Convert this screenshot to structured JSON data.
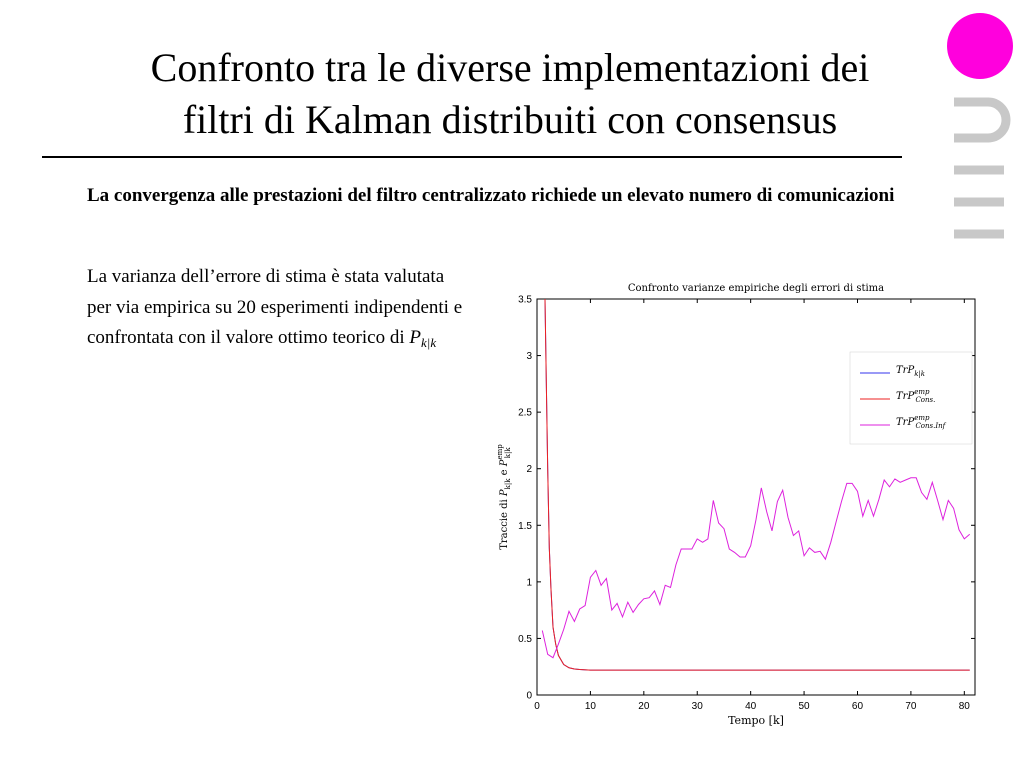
{
  "slide": {
    "title_line1": "Confronto tra le diverse implementazioni dei",
    "title_line2": "filtri di Kalman distribuiti con consensus",
    "subtitle": "La convergenza alle prestazioni del filtro centralizzato richiede un elevato numero di comunicazioni",
    "body_text": "La varianza dell’errore di stima è stata valutata per via empirica su 20 esperimenti indipendenti e confrontata con il valore ottimo teorico di",
    "body_symbol": "P",
    "body_symbol_sub": "k|k"
  },
  "colors": {
    "logo_dot": "#ff00dd",
    "logo_bars": "#c8c8c8",
    "series_tr_p": "#3333ee",
    "series_cons": "#ee2222",
    "series_cons_inf": "#dd22dd"
  },
  "chart_data": {
    "type": "line",
    "title": "Confronto varianze empiriche degli errori di stima",
    "xlabel": "Tempo [k]",
    "ylabel": "Traccie di P_{k|k} e P^{emp}_{k|k}",
    "xlim": [
      0,
      82
    ],
    "ylim": [
      0,
      3.5
    ],
    "xticks": [
      "0",
      "10",
      "20",
      "30",
      "40",
      "50",
      "60",
      "70",
      "80"
    ],
    "yticks": [
      "0",
      "0.5",
      "1",
      "1.5",
      "2",
      "2.5",
      "3",
      "3.5"
    ],
    "grid": false,
    "legend": "top-right",
    "series": [
      {
        "name": "TrP_{k|k}",
        "x": [
          1.5,
          1.8,
          2,
          2.3,
          2.6,
          3,
          3.5,
          4,
          5,
          6,
          7,
          8,
          10,
          81
        ],
        "y": [
          3.5,
          2.6,
          2.0,
          1.3,
          0.95,
          0.6,
          0.45,
          0.35,
          0.27,
          0.24,
          0.23,
          0.225,
          0.22,
          0.22
        ]
      },
      {
        "name": "TrP^{emp}_{Cons.}",
        "x": [
          1.5,
          1.8,
          2,
          2.3,
          2.6,
          3,
          3.5,
          4,
          5,
          6,
          7,
          8,
          10,
          81
        ],
        "y": [
          3.5,
          2.6,
          2.0,
          1.3,
          0.95,
          0.6,
          0.45,
          0.35,
          0.27,
          0.24,
          0.23,
          0.225,
          0.22,
          0.22
        ]
      },
      {
        "name": "TrP^{emp}_{Cons.Inf}",
        "x": [
          1,
          2,
          3,
          4,
          5,
          6,
          7,
          8,
          9,
          10,
          11,
          12,
          13,
          14,
          15,
          16,
          17,
          18,
          19,
          20,
          21,
          22,
          23,
          24,
          25,
          26,
          27,
          28,
          29,
          30,
          31,
          32,
          33,
          34,
          35,
          36,
          37,
          38,
          39,
          40,
          41,
          42,
          43,
          44,
          45,
          46,
          47,
          48,
          49,
          50,
          51,
          52,
          53,
          54,
          55,
          56,
          57,
          58,
          59,
          60,
          61,
          62,
          63,
          64,
          65,
          66,
          67,
          68,
          69,
          70,
          71,
          72,
          73,
          74,
          75,
          76,
          77,
          78,
          79,
          80,
          81
        ],
        "y": [
          0.57,
          0.36,
          0.33,
          0.45,
          0.58,
          0.74,
          0.65,
          0.76,
          0.79,
          1.04,
          1.1,
          0.97,
          1.03,
          0.75,
          0.81,
          0.69,
          0.82,
          0.73,
          0.8,
          0.85,
          0.86,
          0.92,
          0.8,
          0.97,
          0.95,
          1.15,
          1.29,
          1.29,
          1.29,
          1.38,
          1.35,
          1.38,
          1.72,
          1.52,
          1.47,
          1.29,
          1.26,
          1.22,
          1.22,
          1.32,
          1.55,
          1.83,
          1.62,
          1.45,
          1.71,
          1.81,
          1.57,
          1.41,
          1.45,
          1.23,
          1.3,
          1.26,
          1.27,
          1.2,
          1.35,
          1.53,
          1.71,
          1.87,
          1.87,
          1.8,
          1.58,
          1.72,
          1.58,
          1.73,
          1.9,
          1.84,
          1.91,
          1.88,
          1.9,
          1.92,
          1.92,
          1.79,
          1.73,
          1.88,
          1.72,
          1.55,
          1.72,
          1.65,
          1.46,
          1.38,
          1.42
        ]
      }
    ]
  }
}
